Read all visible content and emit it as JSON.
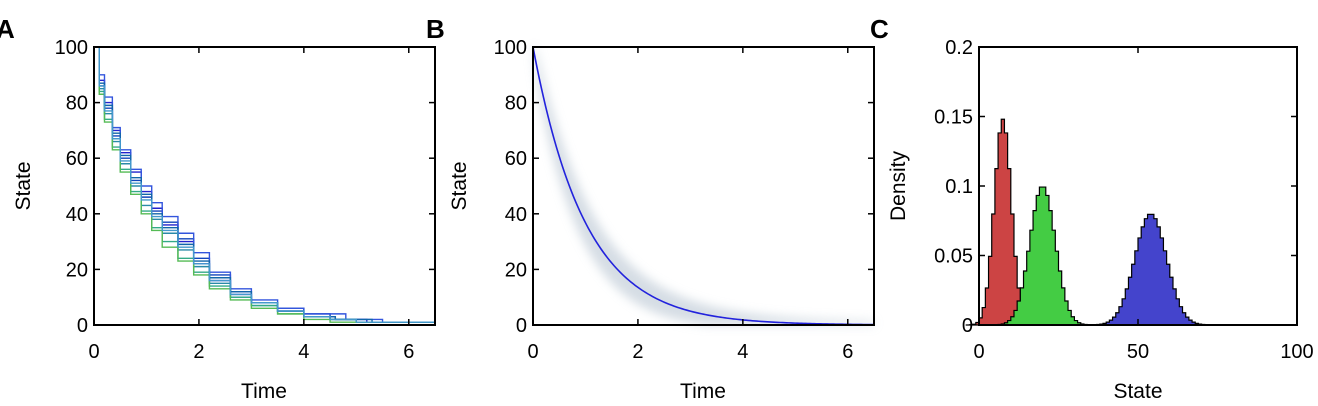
{
  "chart_data": [
    {
      "panel": "A",
      "type": "line",
      "step": true,
      "xlabel": "Time",
      "ylabel": "State",
      "xlim": [
        0,
        6.5
      ],
      "ylim": [
        0,
        100
      ],
      "xticks": [
        0,
        2,
        4,
        6
      ],
      "yticks": [
        0,
        20,
        40,
        60,
        80,
        100
      ],
      "series": [
        {
          "color": "#2222cc",
          "x": [
            0,
            0.1,
            0.2,
            0.35,
            0.5,
            0.7,
            0.9,
            1.1,
            1.3,
            1.6,
            1.9,
            2.2,
            2.6,
            3.0,
            3.5,
            4.0,
            4.6,
            5.2,
            6.5
          ],
          "y": [
            100,
            88,
            80,
            70,
            62,
            55,
            48,
            42,
            36,
            30,
            22,
            16,
            11,
            8,
            5,
            3,
            2,
            1,
            1
          ]
        },
        {
          "color": "#1144bb",
          "x": [
            0,
            0.1,
            0.2,
            0.35,
            0.5,
            0.7,
            0.9,
            1.1,
            1.3,
            1.6,
            1.9,
            2.2,
            2.6,
            3.0,
            3.5,
            4.0,
            4.5,
            5.0,
            6.5
          ],
          "y": [
            100,
            86,
            78,
            68,
            60,
            52,
            46,
            41,
            37,
            31,
            24,
            18,
            12,
            8,
            6,
            4,
            2,
            1,
            0
          ]
        },
        {
          "color": "#3355dd",
          "x": [
            0,
            0.1,
            0.2,
            0.35,
            0.5,
            0.7,
            0.9,
            1.1,
            1.3,
            1.6,
            1.9,
            2.2,
            2.6,
            3.0,
            3.5,
            4.0,
            4.8,
            5.5,
            6.5
          ],
          "y": [
            100,
            90,
            82,
            71,
            63,
            56,
            50,
            44,
            39,
            33,
            26,
            19,
            13,
            9,
            6,
            4,
            2,
            1,
            1
          ]
        },
        {
          "color": "#2a8aa8",
          "x": [
            0,
            0.1,
            0.2,
            0.35,
            0.5,
            0.7,
            0.9,
            1.1,
            1.3,
            1.6,
            1.9,
            2.2,
            2.6,
            3.0,
            3.5,
            4.0,
            4.5,
            5.0,
            6.5
          ],
          "y": [
            100,
            85,
            76,
            66,
            58,
            50,
            43,
            38,
            33,
            27,
            21,
            15,
            10,
            7,
            5,
            3,
            2,
            1,
            0
          ]
        },
        {
          "color": "#33aa88",
          "x": [
            0,
            0.1,
            0.2,
            0.35,
            0.5,
            0.7,
            0.9,
            1.1,
            1.3,
            1.6,
            1.9,
            2.2,
            2.6,
            3.0,
            3.5,
            4.0,
            4.5,
            5.0,
            6.5
          ],
          "y": [
            100,
            84,
            74,
            64,
            56,
            48,
            41,
            35,
            30,
            24,
            19,
            14,
            10,
            7,
            4,
            3,
            2,
            1,
            0
          ]
        },
        {
          "color": "#55bb55",
          "x": [
            0,
            0.1,
            0.2,
            0.35,
            0.5,
            0.7,
            0.9,
            1.1,
            1.3,
            1.6,
            1.9,
            2.2,
            2.6,
            3.0,
            3.5,
            4.0,
            4.5,
            5.0,
            6.5
          ],
          "y": [
            100,
            83,
            73,
            63,
            55,
            47,
            40,
            34,
            28,
            23,
            18,
            13,
            9,
            6,
            4,
            2,
            1,
            1,
            0
          ]
        },
        {
          "color": "#1166aa",
          "x": [
            0,
            0.1,
            0.2,
            0.35,
            0.5,
            0.7,
            0.9,
            1.1,
            1.3,
            1.6,
            1.9,
            2.2,
            2.6,
            3.0,
            3.5,
            4.0,
            4.6,
            5.3,
            6.5
          ],
          "y": [
            100,
            87,
            79,
            69,
            61,
            53,
            47,
            40,
            35,
            29,
            23,
            17,
            12,
            8,
            5,
            3,
            2,
            1,
            0
          ]
        },
        {
          "color": "#4499cc",
          "x": [
            0,
            0.1,
            0.2,
            0.35,
            0.5,
            0.7,
            0.9,
            1.1,
            1.3,
            1.6,
            1.9,
            2.2,
            2.6,
            3.0,
            3.5,
            4.0,
            4.5,
            5.0,
            6.5
          ],
          "y": [
            100,
            86,
            77,
            67,
            59,
            51,
            45,
            39,
            34,
            28,
            22,
            16,
            11,
            8,
            5,
            3,
            2,
            1,
            0
          ]
        }
      ]
    },
    {
      "panel": "B",
      "type": "line",
      "xlabel": "Time",
      "ylabel": "State",
      "xlim": [
        0,
        6.5
      ],
      "ylim": [
        0,
        100
      ],
      "xticks": [
        0,
        2,
        4,
        6
      ],
      "yticks": [
        0,
        20,
        40,
        60,
        80,
        100
      ],
      "mean_curve": {
        "color": "#2222dd",
        "function": "100*exp(-x)"
      },
      "density_band": {
        "color": "#c8d2dc"
      }
    },
    {
      "panel": "C",
      "type": "bar",
      "histogram": true,
      "xlabel": "State",
      "ylabel": "Density",
      "xlim": [
        0,
        100
      ],
      "ylim": [
        0,
        0.2
      ],
      "xticks": [
        0,
        50,
        100
      ],
      "yticks": [
        0,
        0.05,
        0.1,
        0.15,
        0.2
      ],
      "series": [
        {
          "color": "#cc4444",
          "mean": 7.5,
          "sd": 2.7,
          "peak": 0.148
        },
        {
          "color": "#44cc44",
          "mean": 20,
          "sd": 4.0,
          "peak": 0.1
        },
        {
          "color": "#4444cc",
          "mean": 54,
          "sd": 5.0,
          "peak": 0.08
        }
      ]
    }
  ]
}
